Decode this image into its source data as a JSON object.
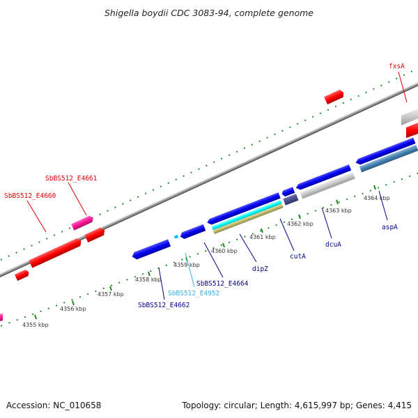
{
  "title": "Shigella boydii CDC 3083-94, complete genome",
  "footer": {
    "accession": "Accession: NC_010658",
    "topology": "Topology: circular; Length: 4,615,997 bp; Genes: 4,415"
  },
  "ticks": [
    "4355 kbp",
    "4356 kbp",
    "4357 kbp",
    "4358 kbp",
    "4359 kbp",
    "4360 kbp",
    "4361 kbp",
    "4362 kbp",
    "4363 kbp",
    "4364 kbp"
  ],
  "gene_labels": [
    "fxsA",
    "SbBS512_E4661",
    "SbBS512_E4660",
    "SbBS512_E4664",
    "SbBS512_E4952",
    "SbBS512_E4662",
    "dipZ",
    "cutA",
    "dcuA",
    "aspA"
  ],
  "colors": {
    "forward_cds": "#ff0000",
    "reverse_cds": "#0000ee",
    "rna": "#00ffff",
    "pseudo": "#ff1493",
    "other": "#bdbdbd",
    "steel": "#4682b4",
    "tan": "#bdb76b",
    "ticks": "#228b22",
    "backbone": "#888888"
  }
}
